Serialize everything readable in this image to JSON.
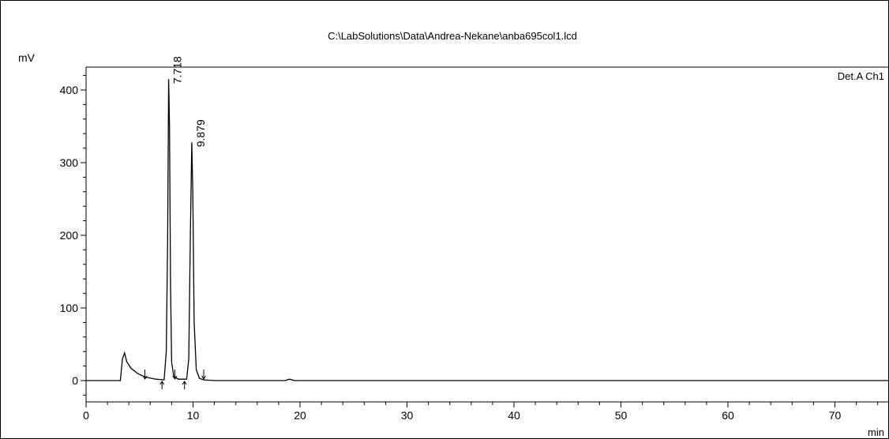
{
  "chart_data": {
    "type": "line",
    "title": "C:\\LabSolutions\\Data\\Andrea-Nekane\\anba695col1.lcd",
    "ylabel": "mV",
    "xlabel": "min",
    "channel_label": "Det.A Ch1",
    "xlim": [
      0,
      75
    ],
    "ylim": [
      -20,
      440
    ],
    "x_ticks": [
      0,
      10,
      20,
      30,
      40,
      50,
      60,
      70
    ],
    "y_ticks": [
      0,
      100,
      200,
      300,
      400
    ],
    "y_tick_labels": [
      "0",
      "100",
      "200",
      "300",
      "400"
    ],
    "series": [
      {
        "color": "#000000",
        "points": [
          [
            0,
            0
          ],
          [
            3.2,
            0
          ],
          [
            3.4,
            30
          ],
          [
            3.6,
            38
          ],
          [
            3.8,
            26
          ],
          [
            4.2,
            17
          ],
          [
            4.8,
            10
          ],
          [
            5.5,
            5
          ],
          [
            6.5,
            2
          ],
          [
            7.3,
            1
          ],
          [
            7.5,
            40
          ],
          [
            7.62,
            190
          ],
          [
            7.72,
            415
          ],
          [
            7.8,
            350
          ],
          [
            7.9,
            130
          ],
          [
            8.0,
            25
          ],
          [
            8.2,
            6
          ],
          [
            8.6,
            2
          ],
          [
            9.4,
            2
          ],
          [
            9.6,
            30
          ],
          [
            9.75,
            200
          ],
          [
            9.88,
            328
          ],
          [
            9.98,
            260
          ],
          [
            10.1,
            80
          ],
          [
            10.3,
            15
          ],
          [
            10.6,
            3
          ],
          [
            11,
            1
          ],
          [
            12,
            0
          ],
          [
            18.6,
            0
          ],
          [
            19,
            2
          ],
          [
            19.5,
            0
          ],
          [
            75,
            0
          ]
        ]
      }
    ],
    "peak_labels": [
      {
        "x": 7.718,
        "y": 415,
        "text": "7.718"
      },
      {
        "x": 9.879,
        "y": 328,
        "text": "9.879"
      }
    ],
    "markers": [
      {
        "x": 5.5,
        "dir": "down"
      },
      {
        "x": 7.1,
        "dir": "up"
      },
      {
        "x": 8.3,
        "dir": "down"
      },
      {
        "x": 9.2,
        "dir": "up"
      },
      {
        "x": 11.0,
        "dir": "down"
      }
    ],
    "grid": false
  }
}
